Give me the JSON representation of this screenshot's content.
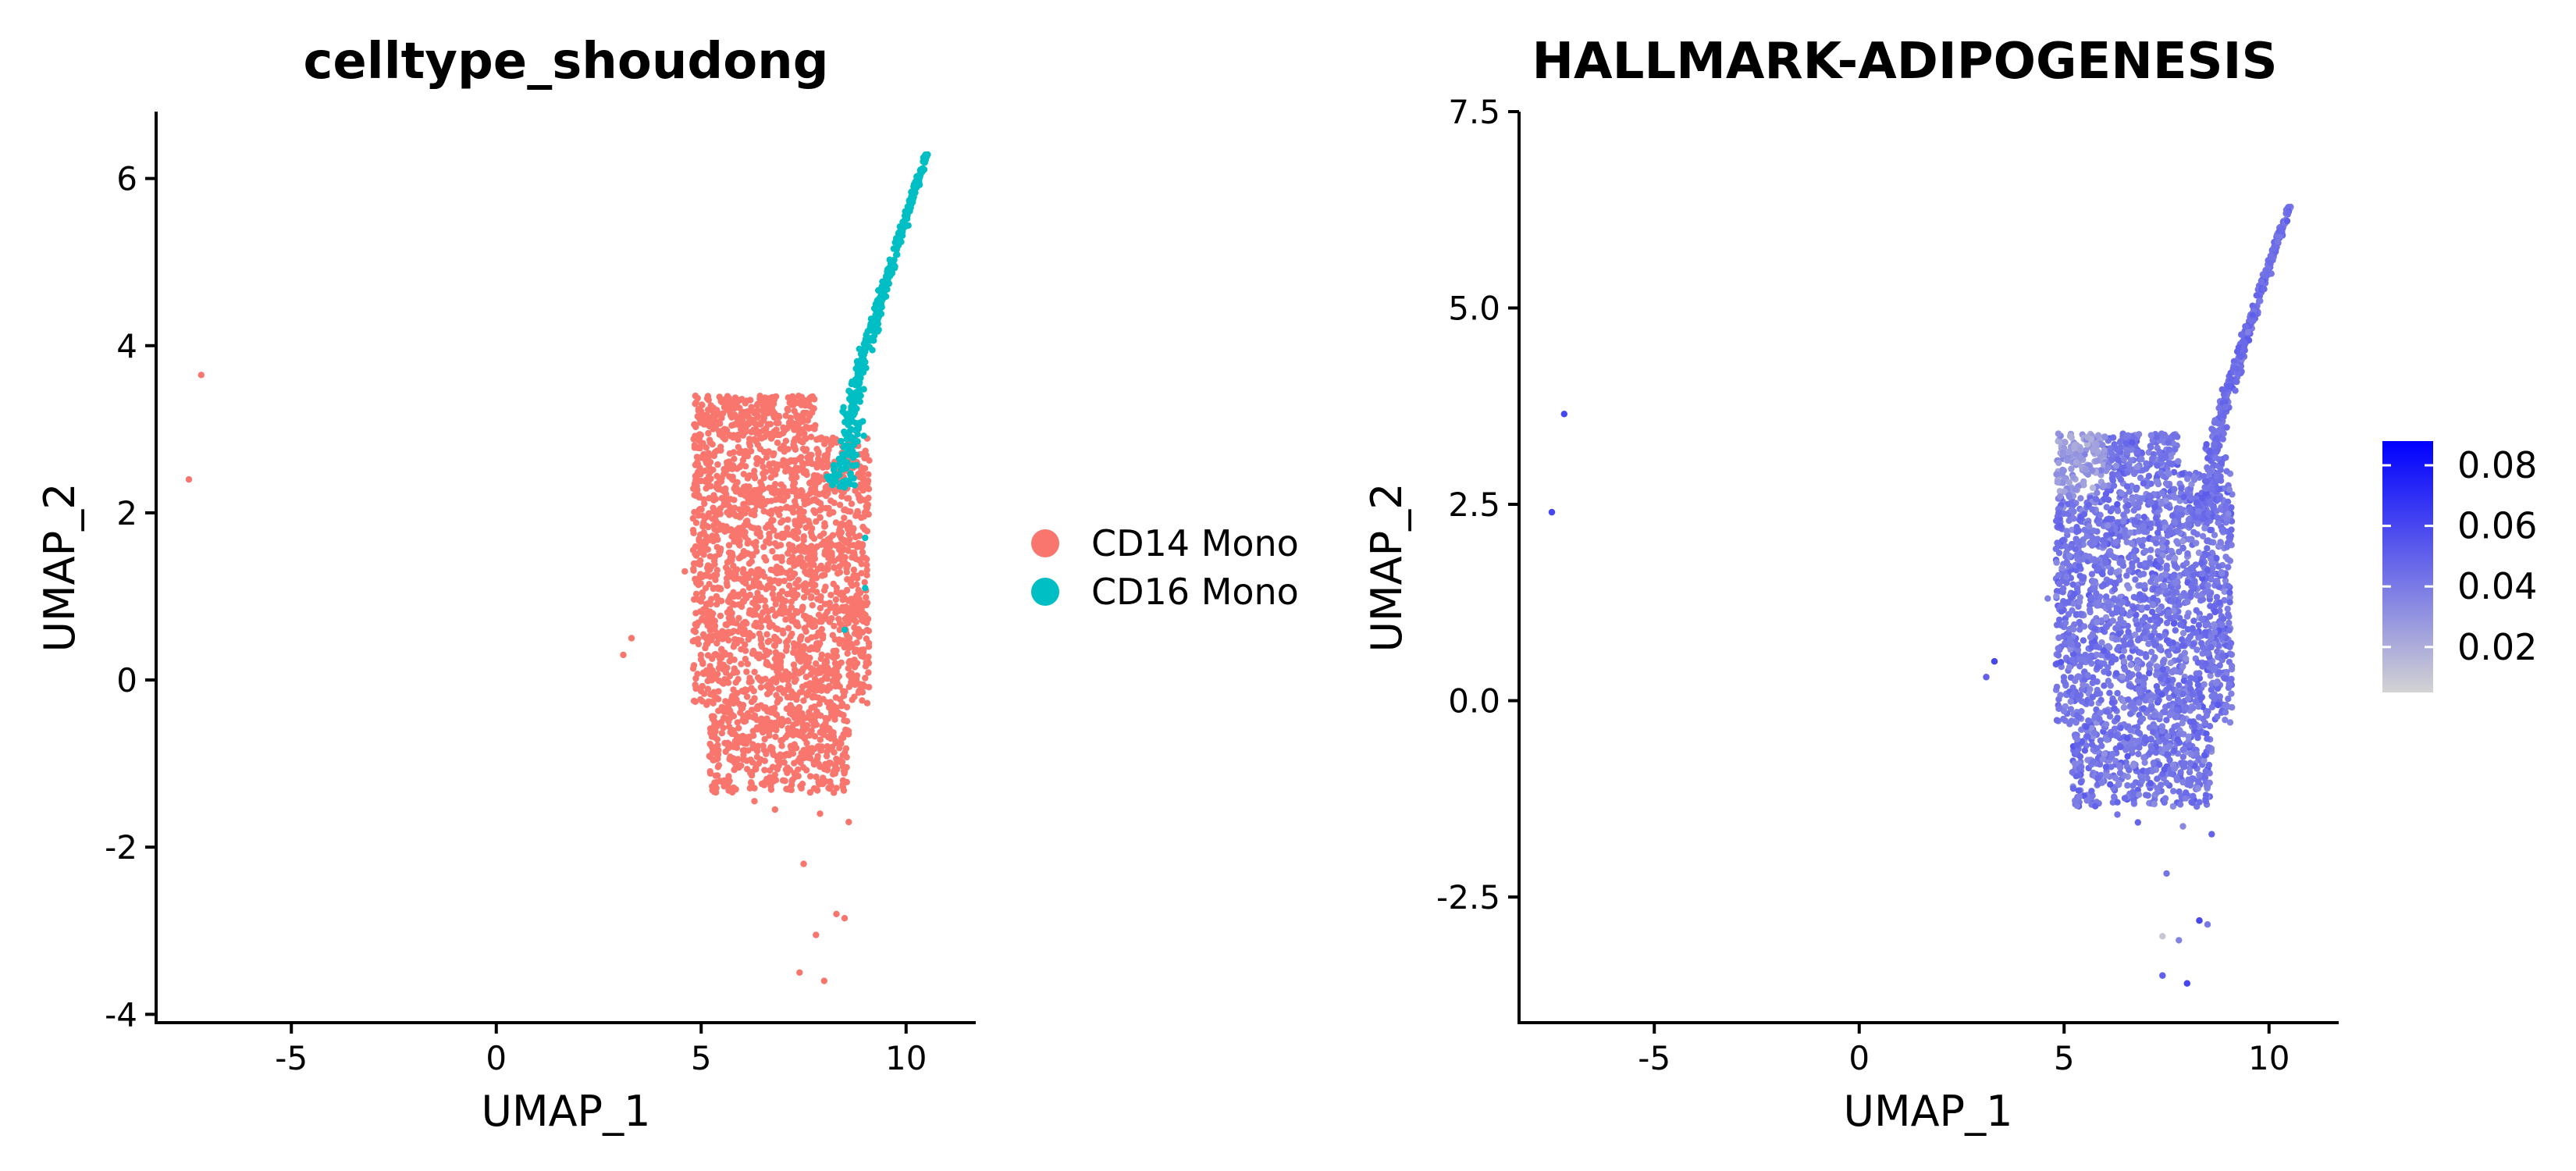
{
  "chart_data": [
    {
      "type": "scatter",
      "title": "celltype_shoudong",
      "xlabel": "UMAP_1",
      "ylabel": "UMAP_2",
      "xlim": [
        -8.3,
        11.7
      ],
      "ylim": [
        -4.1,
        6.8
      ],
      "xticks": [
        -5,
        0,
        5,
        10
      ],
      "xtick_labels": [
        "-5",
        "0",
        "5",
        "10"
      ],
      "yticks": [
        -4,
        -2,
        0,
        2,
        4,
        6
      ],
      "ytick_labels": [
        "-4",
        "-2",
        "0",
        "2",
        "4",
        "6"
      ],
      "legend": {
        "placement": "right",
        "entries": [
          {
            "label": "CD14 Mono",
            "color": "#F8766D"
          },
          {
            "label": "CD16 Mono",
            "color": "#00BFC4"
          }
        ]
      },
      "series": [
        {
          "name": "CD14 Mono",
          "color": "#F8766D",
          "points": [
            [
              -7.5,
              2.4
            ],
            [
              -7.2,
              3.65
            ],
            [
              3.1,
              0.3
            ],
            [
              3.3,
              0.5
            ],
            [
              4.6,
              1.3
            ],
            [
              7.5,
              -2.2
            ],
            [
              7.9,
              -1.6
            ],
            [
              8.3,
              -2.8
            ],
            [
              8.5,
              -2.85
            ],
            [
              7.8,
              -3.05
            ],
            [
              7.4,
              -3.5
            ],
            [
              8.0,
              -3.6
            ],
            [
              6.8,
              -1.55
            ],
            [
              8.6,
              -1.7
            ],
            [
              6.3,
              -1.45
            ]
          ]
        },
        {
          "name": "CD16 Mono",
          "color": "#00BFC4",
          "points": [
            [
              8.5,
              0.6
            ],
            [
              9.0,
              1.1
            ],
            [
              9.0,
              1.7
            ]
          ]
        }
      ],
      "clusters": [
        {
          "series": "CD14 Mono",
          "shape": "rect",
          "x": [
            4.8,
            9.1
          ],
          "y": [
            -1.35,
            3.4
          ],
          "n": 2600
        },
        {
          "series": "CD16 Mono",
          "shape": "band",
          "x": [
            7.7,
            10.6
          ],
          "y": [
            2.3,
            6.3
          ],
          "n": 420
        }
      ]
    },
    {
      "type": "scatter",
      "title": "HALLMARK-ADIPOGENESIS",
      "xlabel": "UMAP_1",
      "ylabel": "UMAP_2",
      "xlim": [
        -8.3,
        11.7
      ],
      "ylim": [
        -4.1,
        7.5
      ],
      "xticks": [
        -5,
        0,
        5,
        10
      ],
      "xtick_labels": [
        "-5",
        "0",
        "5",
        "10"
      ],
      "yticks": [
        -2.5,
        0.0,
        2.5,
        5.0,
        7.5
      ],
      "ytick_labels": [
        "-2.5",
        "0.0",
        "2.5",
        "5.0",
        "7.5"
      ],
      "colorbar": {
        "low_color": "#D3D3D3",
        "high_color": "#0000FF",
        "range": [
          0.005,
          0.088
        ],
        "ticks": [
          0.02,
          0.04,
          0.06,
          0.08
        ],
        "tick_labels": [
          "0.02",
          "0.04",
          "0.06",
          "0.08"
        ]
      },
      "points": [
        [
          -7.5,
          2.4,
          0.06
        ],
        [
          -7.2,
          3.65,
          0.06
        ],
        [
          3.1,
          0.3,
          0.05
        ],
        [
          3.3,
          0.5,
          0.06
        ],
        [
          7.4,
          -3.5,
          0.05
        ],
        [
          8.0,
          -3.6,
          0.06
        ],
        [
          7.4,
          -3.0,
          0.01
        ],
        [
          8.3,
          -2.8,
          0.06
        ]
      ]
    }
  ]
}
